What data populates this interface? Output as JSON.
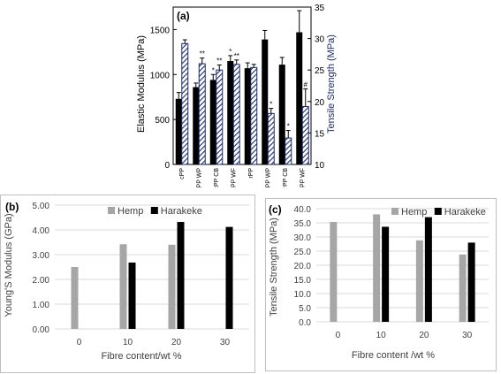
{
  "chart_data": [
    {
      "type": "bar",
      "panel_label": "(a)",
      "categories": [
        "cPP",
        "cPP WP",
        "cPP CB",
        "cPP WF",
        "rPP",
        "rPP WP",
        "rPP CB",
        "rPP WF"
      ],
      "ylabel": "Elastic Modulus (MPa)",
      "y2label": "Tensile Strength (MPa)",
      "ylim": [
        0,
        1750
      ],
      "y2lim": [
        10,
        35
      ],
      "yticks": [
        0,
        500,
        1000,
        1500
      ],
      "y2ticks": [
        10,
        15,
        20,
        25,
        30,
        35
      ],
      "grid": false,
      "series": [
        {
          "values": [
            730,
            860,
            940,
            1150,
            1070,
            1390,
            1110,
            1470
          ],
          "errors": [
            70,
            45,
            60,
            60,
            60,
            100,
            80,
            240
          ],
          "axis": "left",
          "color": "#000000",
          "markers": [
            "",
            "",
            "*",
            "*",
            "",
            "",
            "",
            ""
          ]
        },
        {
          "values": [
            29.2,
            26.0,
            25.0,
            25.9,
            25.4,
            18.1,
            14.2,
            19.2
          ],
          "errors": [
            0.6,
            0.9,
            0.8,
            0.7,
            0.5,
            0.8,
            1.2,
            2.8
          ],
          "axis": "right",
          "color": "#1c2a6b",
          "pattern": "hatched",
          "markers": [
            "",
            "**",
            "**",
            "**",
            "",
            "*",
            "*",
            "#"
          ]
        }
      ]
    },
    {
      "type": "bar",
      "panel_label": "(b)",
      "categories": [
        "0",
        "10",
        "20",
        "30"
      ],
      "xlabel": "Fibre content/wt %",
      "ylabel": "Young'S Modulus (GPa)",
      "ylim": [
        0,
        5
      ],
      "yticks": [
        "0.00",
        "1.00",
        "2.00",
        "3.00",
        "4.00",
        "5.00"
      ],
      "grid": true,
      "legend": "top",
      "series": [
        {
          "name": "Hemp",
          "color": "#a6a6a6",
          "values": [
            2.5,
            3.42,
            3.4,
            null
          ]
        },
        {
          "name": "Harakeke",
          "color": "#000000",
          "values": [
            null,
            2.68,
            4.32,
            4.12
          ]
        }
      ]
    },
    {
      "type": "bar",
      "panel_label": "(c)",
      "categories": [
        "0",
        "10",
        "20",
        "30"
      ],
      "xlabel": "Fibre content /wt %",
      "ylabel": "Tensile Strength (MPa)",
      "ylim": [
        0,
        40
      ],
      "yticks": [
        "0.0",
        "5.0",
        "10.0",
        "15.0",
        "20.0",
        "25.0",
        "30.0",
        "35.0",
        "40.0"
      ],
      "grid": true,
      "legend": "top",
      "series": [
        {
          "name": "Hemp",
          "color": "#a6a6a6",
          "values": [
            35.3,
            38.0,
            28.8,
            23.8
          ]
        },
        {
          "name": "Harakeke",
          "color": "#000000",
          "values": [
            null,
            33.6,
            37.0,
            28.0
          ]
        }
      ]
    }
  ]
}
